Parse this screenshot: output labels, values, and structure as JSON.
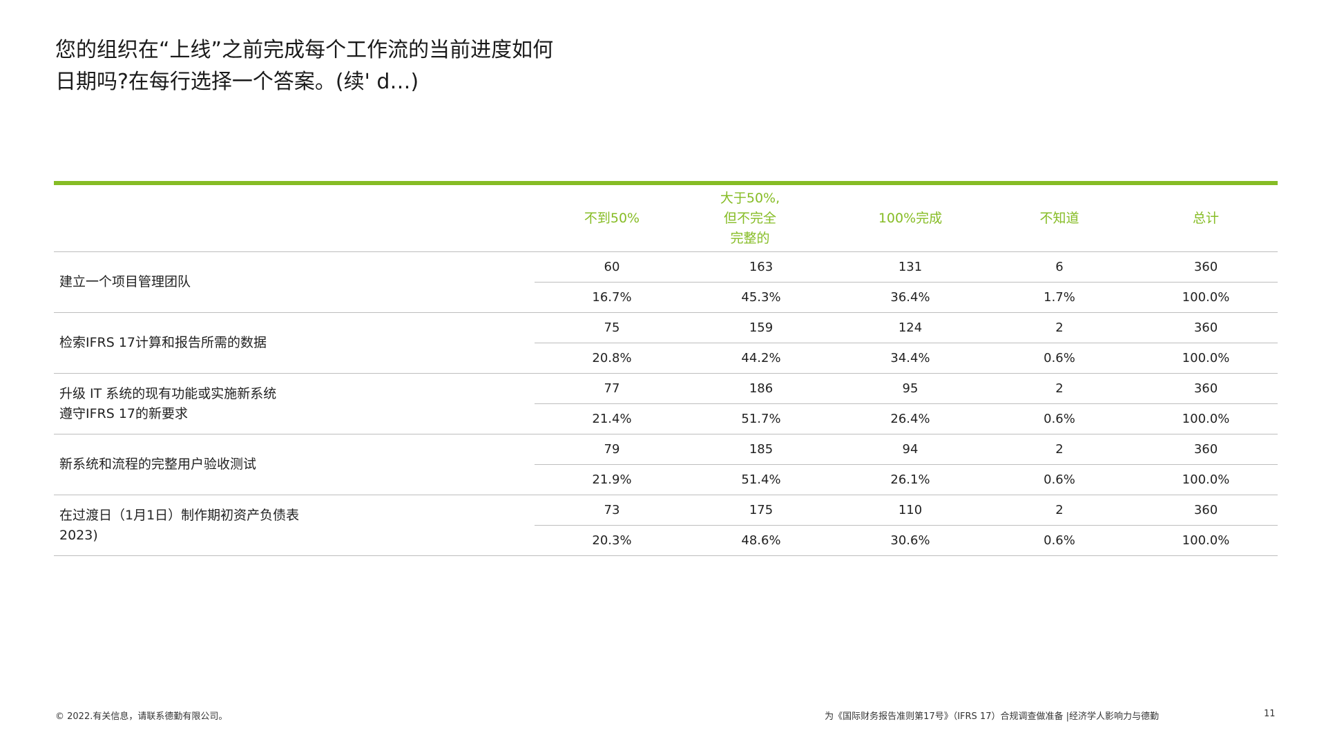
{
  "title": {
    "line1": "您的组织在“上线”之前完成每个工作流的当前进度如何",
    "line2": "日期吗?在每行选择一个答案。(续' d…)"
  },
  "table": {
    "headers": [
      {
        "lines": [
          "不到50%"
        ]
      },
      {
        "lines": [
          "大于50%,",
          "但不完全",
          "完整的"
        ]
      },
      {
        "lines": [
          "100%完成"
        ]
      },
      {
        "lines": [
          "不知道"
        ]
      },
      {
        "lines": [
          "总计"
        ]
      }
    ],
    "rows": [
      {
        "label": [
          "建立一个项目管理团队"
        ],
        "counts": [
          "60",
          "163",
          "131",
          "6",
          "360"
        ],
        "percents": [
          "16.7%",
          "45.3%",
          "36.4%",
          "1.7%",
          "100.0%"
        ]
      },
      {
        "label": [
          "检索IFRS 17计算和报告所需的数据"
        ],
        "counts": [
          "75",
          "159",
          "124",
          "2",
          "360"
        ],
        "percents": [
          "20.8%",
          "44.2%",
          "34.4%",
          "0.6%",
          "100.0%"
        ]
      },
      {
        "label": [
          "升级 IT 系统的现有功能或实施新系统",
          "遵守IFRS 17的新要求"
        ],
        "counts": [
          "77",
          "186",
          "95",
          "2",
          "360"
        ],
        "percents": [
          "21.4%",
          "51.7%",
          "26.4%",
          "0.6%",
          "100.0%"
        ]
      },
      {
        "label": [
          "新系统和流程的完整用户验收测试"
        ],
        "counts": [
          "79",
          "185",
          "94",
          "2",
          "360"
        ],
        "percents": [
          "21.9%",
          "51.4%",
          "26.1%",
          "0.6%",
          "100.0%"
        ]
      },
      {
        "label": [
          "在过渡日（1月1日）制作期初资产负债表",
          "2023)"
        ],
        "counts": [
          "73",
          "175",
          "110",
          "2",
          "360"
        ],
        "percents": [
          "20.3%",
          "48.6%",
          "30.6%",
          "0.6%",
          "100.0%"
        ]
      }
    ]
  },
  "footer": {
    "copyright": "© 2022.有关信息，请联系德勤有限公司。",
    "source": "为《国际财务报告准则第17号》（IFRS 17）合规调查做准备 |经济学人影响力与德勤",
    "page": "11"
  },
  "colors": {
    "accent_green": "#86bc25",
    "rule_gray": "#bdbdbd",
    "text": "#222222"
  }
}
